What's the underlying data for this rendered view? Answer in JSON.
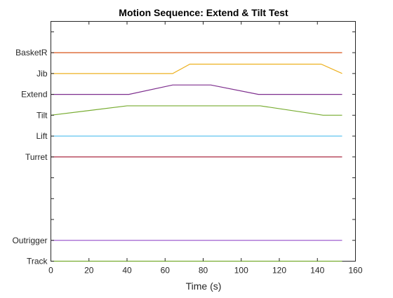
{
  "chart_data": {
    "type": "line",
    "title": "Motion Sequence: Extend & Tilt Test",
    "xlabel": "Time (s)",
    "ylabel": "",
    "xlim": [
      0,
      160
    ],
    "xticks": [
      0,
      20,
      40,
      60,
      80,
      100,
      120,
      140,
      160
    ],
    "ylim": [
      0,
      11.5
    ],
    "yticks": [
      0,
      1,
      2,
      3,
      4,
      5,
      6,
      7,
      8,
      9,
      10,
      11
    ],
    "ytick_labels": {
      "0": "Track",
      "1": "Outrigger",
      "5": "Turret",
      "6": "Lift",
      "7": "Tilt",
      "8": "Extend",
      "9": "Jib",
      "10": "BasketR"
    },
    "grid": false,
    "series": [
      {
        "name": "BasketR",
        "color": "#D95319",
        "x": [
          0,
          153
        ],
        "y": [
          10,
          10
        ]
      },
      {
        "name": "Jib",
        "color": "#EDB120",
        "x": [
          0,
          64,
          73,
          142,
          153
        ],
        "y": [
          9,
          9,
          9.45,
          9.45,
          9
        ]
      },
      {
        "name": "Extend",
        "color": "#7E2F8E",
        "x": [
          0,
          41,
          64,
          84,
          109,
          153
        ],
        "y": [
          8,
          8,
          8.45,
          8.45,
          8,
          8
        ]
      },
      {
        "name": "Tilt",
        "color": "#77AC30",
        "x": [
          0,
          40,
          110,
          143,
          153
        ],
        "y": [
          7,
          7.45,
          7.45,
          7,
          7
        ]
      },
      {
        "name": "Lift",
        "color": "#4DBEEE",
        "x": [
          0,
          153
        ],
        "y": [
          6,
          6
        ]
      },
      {
        "name": "Turret",
        "color": "#A2142F",
        "x": [
          0,
          153
        ],
        "y": [
          5,
          5
        ]
      },
      {
        "name": "Outrigger",
        "color": "#9F5FCF",
        "x": [
          0,
          153
        ],
        "y": [
          1,
          1
        ]
      },
      {
        "name": "Track",
        "color": "#77AC30",
        "x": [
          0,
          153
        ],
        "y": [
          0,
          0
        ]
      }
    ]
  }
}
